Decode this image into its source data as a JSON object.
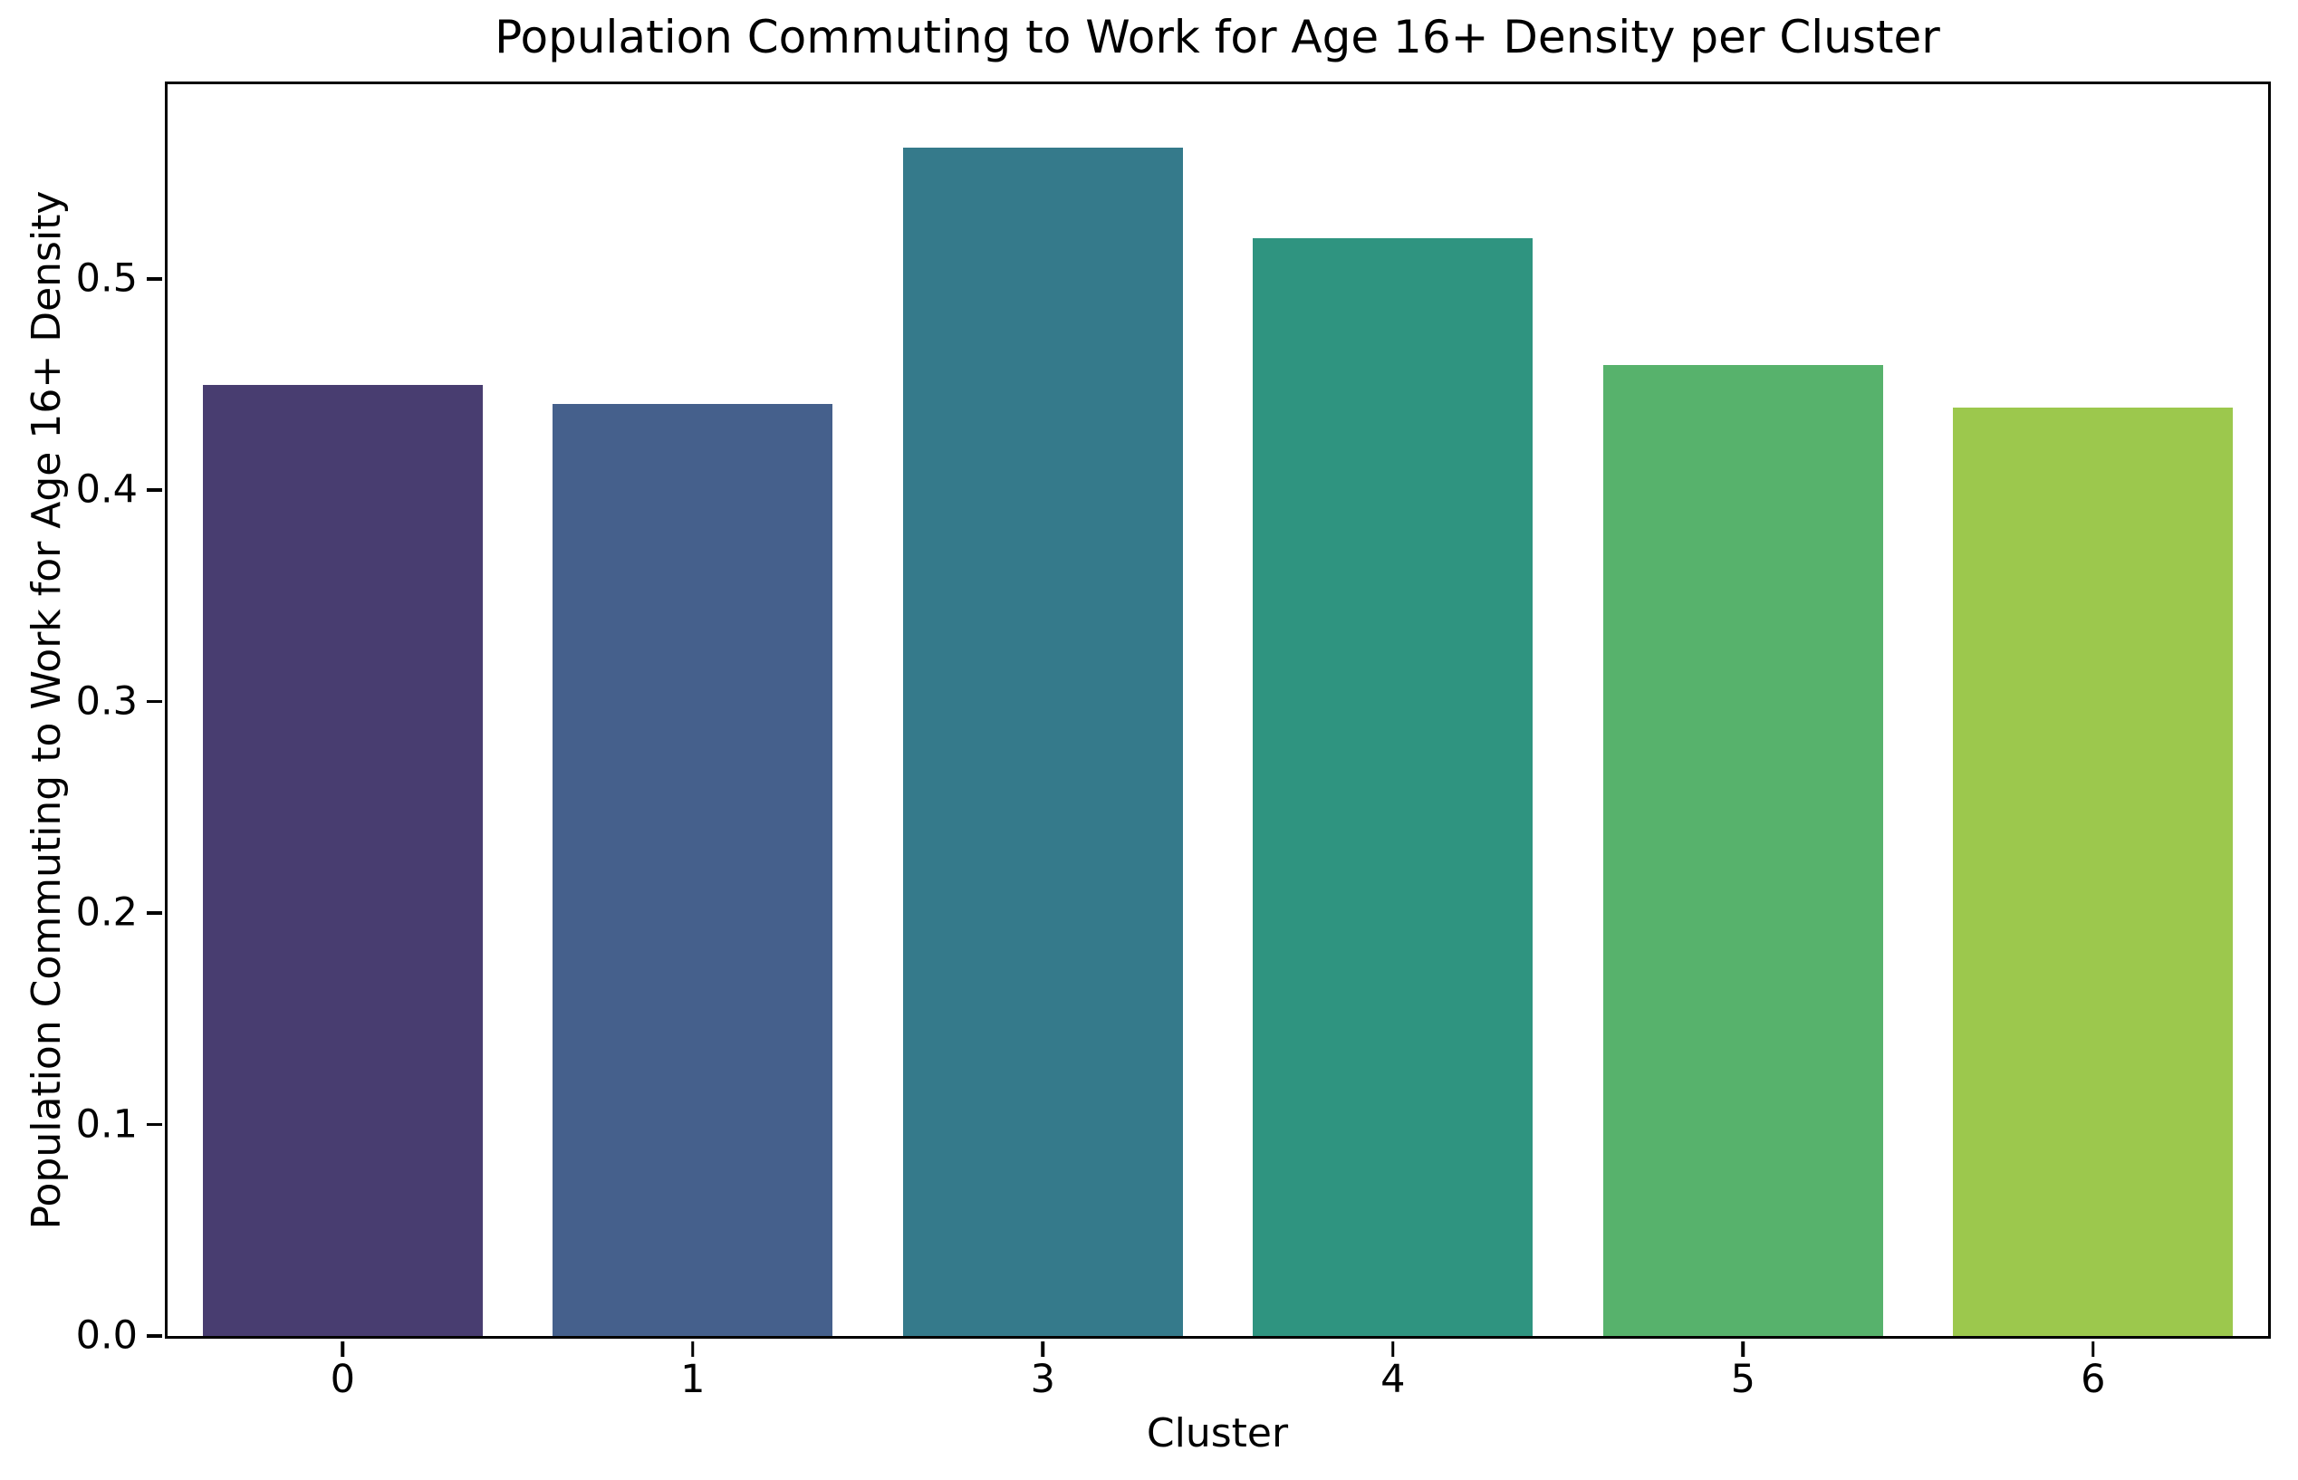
{
  "chart_data": {
    "type": "bar",
    "title": "Population Commuting to Work for Age 16+ Density per Cluster",
    "xlabel": "Cluster",
    "ylabel": "Population Commuting to Work for Age 16+ Density",
    "categories": [
      "0",
      "1",
      "3",
      "4",
      "5",
      "6"
    ],
    "values": [
      0.45,
      0.441,
      0.562,
      0.519,
      0.459,
      0.439
    ],
    "bar_colors": [
      "#483d70",
      "#45608c",
      "#357a8b",
      "#2f9480",
      "#57b26c",
      "#9cc84d"
    ],
    "yticks": {
      "labels": [
        "0.0",
        "0.1",
        "0.2",
        "0.3",
        "0.4",
        "0.5"
      ],
      "values": [
        0.0,
        0.1,
        0.2,
        0.3,
        0.4,
        0.5
      ]
    },
    "ylim": [
      0,
      0.592
    ],
    "xlim_slots": 6,
    "bar_slot_fraction": 0.8,
    "grid": false,
    "legend": null,
    "palette_name": "viridis-desaturated",
    "axis_color": "#000000",
    "background_color": "#ffffff"
  }
}
